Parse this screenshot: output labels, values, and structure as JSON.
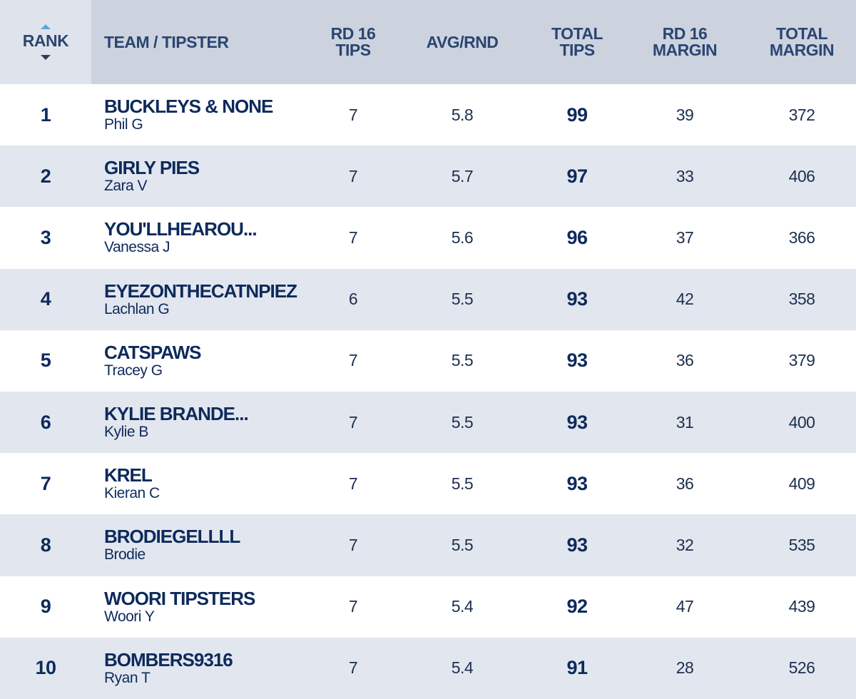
{
  "header": {
    "rank": "RANK",
    "team": "TEAM / TIPSTER",
    "rd_tips": [
      "RD 16",
      "TIPS"
    ],
    "avg": "AVG/RND",
    "total_tips": [
      "TOTAL",
      "TIPS"
    ],
    "rd_margin": [
      "RD 16",
      "MARGIN"
    ],
    "total_margin": [
      "TOTAL",
      "MARGIN"
    ]
  },
  "rows": [
    {
      "rank": "1",
      "team": "BUCKLEYS & NONE",
      "tipster": "Phil G",
      "rd_tips": "7",
      "avg": "5.8",
      "total_tips": "99",
      "rd_margin": "39",
      "total_margin": "372"
    },
    {
      "rank": "2",
      "team": "GIRLY PIES",
      "tipster": "Zara V",
      "rd_tips": "7",
      "avg": "5.7",
      "total_tips": "97",
      "rd_margin": "33",
      "total_margin": "406"
    },
    {
      "rank": "3",
      "team": "YOU'LLHEAROU...",
      "tipster": "Vanessa J",
      "rd_tips": "7",
      "avg": "5.6",
      "total_tips": "96",
      "rd_margin": "37",
      "total_margin": "366"
    },
    {
      "rank": "4",
      "team": "EYEZONTHECATNPIEZ",
      "tipster": "Lachlan G",
      "rd_tips": "6",
      "avg": "5.5",
      "total_tips": "93",
      "rd_margin": "42",
      "total_margin": "358"
    },
    {
      "rank": "5",
      "team": "CATSPAWS",
      "tipster": "Tracey G",
      "rd_tips": "7",
      "avg": "5.5",
      "total_tips": "93",
      "rd_margin": "36",
      "total_margin": "379"
    },
    {
      "rank": "6",
      "team": "KYLIE BRANDE...",
      "tipster": "Kylie B",
      "rd_tips": "7",
      "avg": "5.5",
      "total_tips": "93",
      "rd_margin": "31",
      "total_margin": "400"
    },
    {
      "rank": "7",
      "team": "KREL",
      "tipster": "Kieran C",
      "rd_tips": "7",
      "avg": "5.5",
      "total_tips": "93",
      "rd_margin": "36",
      "total_margin": "409"
    },
    {
      "rank": "8",
      "team": "BRODIEGELLLL",
      "tipster": "Brodie",
      "rd_tips": "7",
      "avg": "5.5",
      "total_tips": "93",
      "rd_margin": "32",
      "total_margin": "535"
    },
    {
      "rank": "9",
      "team": "WOORI TIPSTERS",
      "tipster": "Woori Y",
      "rd_tips": "7",
      "avg": "5.4",
      "total_tips": "92",
      "rd_margin": "47",
      "total_margin": "439"
    },
    {
      "rank": "10",
      "team": "BOMBERS9316",
      "tipster": "Ryan T",
      "rd_tips": "7",
      "avg": "5.4",
      "total_tips": "91",
      "rd_margin": "28",
      "total_margin": "526"
    }
  ],
  "colors": {
    "header_bg": "#ccd3df",
    "rank_header_bg": "#dfe4ec",
    "row_alt_bg": "#e2e6ee",
    "text_navy": "#0d2a5c",
    "sort_arrow_up": "#5aa5e2"
  },
  "icons": {
    "sort_up": "sort-up-icon",
    "sort_down": "sort-down-icon"
  }
}
